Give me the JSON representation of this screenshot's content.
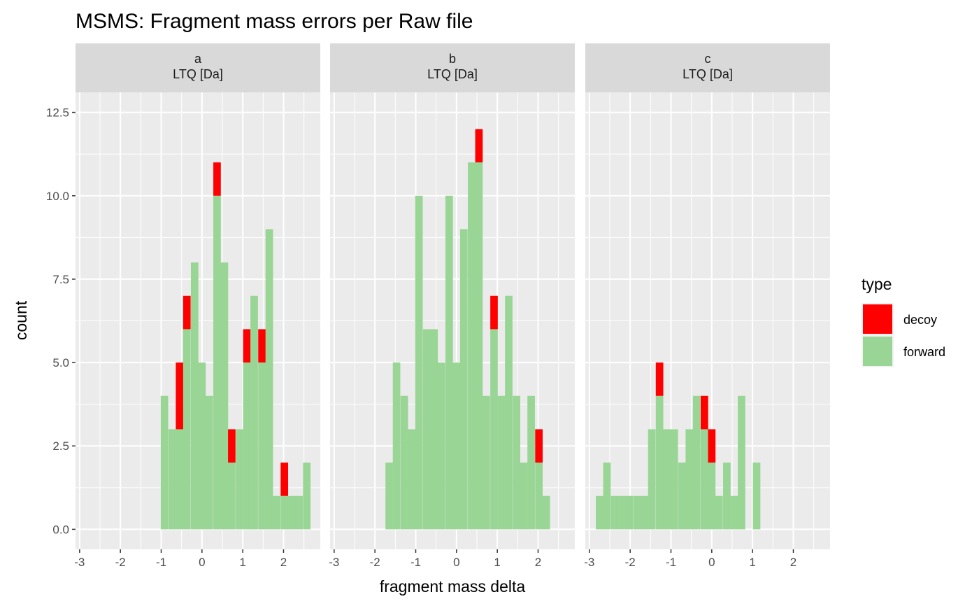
{
  "chart_data": {
    "type": "bar",
    "title": "MSMS: Fragment mass errors per Raw file",
    "xlabel": "fragment mass delta",
    "ylabel": "count",
    "xlim": [
      -3.1,
      2.9
    ],
    "ylim": [
      -0.6,
      13.1
    ],
    "xticks": [
      "-3",
      "-2",
      "-1",
      "0",
      "1",
      "2"
    ],
    "xtick_values": [
      -3,
      -2,
      -1,
      0,
      1,
      2
    ],
    "yticks": [
      "0.0",
      "2.5",
      "5.0",
      "7.5",
      "10.0",
      "12.5"
    ],
    "ytick_values": [
      0,
      2.5,
      5,
      7.5,
      10,
      12.5
    ],
    "stacked": true,
    "grid": true,
    "legend": {
      "title": "type",
      "position": "right",
      "items": [
        {
          "label": "decoy",
          "color": "#ff0000"
        },
        {
          "label": "forward",
          "color": "#99d594"
        }
      ]
    },
    "colors": {
      "decoy": "#ff0000",
      "forward": "#99d594",
      "panel_bg": "#ebebeb",
      "strip_bg": "#d9d9d9",
      "grid": "#ffffff"
    },
    "facets": [
      {
        "strip": [
          "a",
          "LTQ [Da]"
        ],
        "bins": [
          {
            "x": -0.92,
            "forward": 4,
            "decoy": 0
          },
          {
            "x": -0.73,
            "forward": 3,
            "decoy": 0
          },
          {
            "x": -0.55,
            "forward": 3,
            "decoy": 2
          },
          {
            "x": -0.37,
            "forward": 6,
            "decoy": 1
          },
          {
            "x": -0.18,
            "forward": 8,
            "decoy": 0
          },
          {
            "x": 0.0,
            "forward": 5,
            "decoy": 0
          },
          {
            "x": 0.18,
            "forward": 4,
            "decoy": 0
          },
          {
            "x": 0.37,
            "forward": 10,
            "decoy": 1
          },
          {
            "x": 0.55,
            "forward": 8,
            "decoy": 0
          },
          {
            "x": 0.73,
            "forward": 2,
            "decoy": 1
          },
          {
            "x": 0.92,
            "forward": 3,
            "decoy": 0
          },
          {
            "x": 1.1,
            "forward": 5,
            "decoy": 1
          },
          {
            "x": 1.28,
            "forward": 7,
            "decoy": 0
          },
          {
            "x": 1.47,
            "forward": 5,
            "decoy": 1
          },
          {
            "x": 1.65,
            "forward": 9,
            "decoy": 0
          },
          {
            "x": 1.83,
            "forward": 1,
            "decoy": 0
          },
          {
            "x": 2.02,
            "forward": 1,
            "decoy": 1
          },
          {
            "x": 2.2,
            "forward": 1,
            "decoy": 0
          },
          {
            "x": 2.38,
            "forward": 1,
            "decoy": 0
          },
          {
            "x": 2.57,
            "forward": 2,
            "decoy": 0
          }
        ]
      },
      {
        "strip": [
          "b",
          "LTQ [Da]"
        ],
        "bins": [
          {
            "x": -1.65,
            "forward": 2,
            "decoy": 0
          },
          {
            "x": -1.47,
            "forward": 5,
            "decoy": 0
          },
          {
            "x": -1.28,
            "forward": 4,
            "decoy": 0
          },
          {
            "x": -1.1,
            "forward": 3,
            "decoy": 0
          },
          {
            "x": -0.92,
            "forward": 10,
            "decoy": 0
          },
          {
            "x": -0.73,
            "forward": 6,
            "decoy": 0
          },
          {
            "x": -0.55,
            "forward": 6,
            "decoy": 0
          },
          {
            "x": -0.37,
            "forward": 5,
            "decoy": 0
          },
          {
            "x": -0.18,
            "forward": 10,
            "decoy": 0
          },
          {
            "x": 0.0,
            "forward": 5,
            "decoy": 0
          },
          {
            "x": 0.18,
            "forward": 9,
            "decoy": 0
          },
          {
            "x": 0.37,
            "forward": 11,
            "decoy": 0
          },
          {
            "x": 0.55,
            "forward": 11,
            "decoy": 1
          },
          {
            "x": 0.73,
            "forward": 4,
            "decoy": 0
          },
          {
            "x": 0.92,
            "forward": 6,
            "decoy": 1
          },
          {
            "x": 1.1,
            "forward": 4,
            "decoy": 0
          },
          {
            "x": 1.28,
            "forward": 7,
            "decoy": 0
          },
          {
            "x": 1.47,
            "forward": 4,
            "decoy": 0
          },
          {
            "x": 1.65,
            "forward": 2,
            "decoy": 0
          },
          {
            "x": 1.83,
            "forward": 4,
            "decoy": 0
          },
          {
            "x": 2.02,
            "forward": 2,
            "decoy": 1
          },
          {
            "x": 2.2,
            "forward": 1,
            "decoy": 0
          }
        ]
      },
      {
        "strip": [
          "c",
          "LTQ [Da]"
        ],
        "bins": [
          {
            "x": -2.75,
            "forward": 1,
            "decoy": 0
          },
          {
            "x": -2.57,
            "forward": 2,
            "decoy": 0
          },
          {
            "x": -2.38,
            "forward": 1,
            "decoy": 0
          },
          {
            "x": -2.2,
            "forward": 1,
            "decoy": 0
          },
          {
            "x": -2.02,
            "forward": 1,
            "decoy": 0
          },
          {
            "x": -1.83,
            "forward": 1,
            "decoy": 0
          },
          {
            "x": -1.65,
            "forward": 1,
            "decoy": 0
          },
          {
            "x": -1.47,
            "forward": 3,
            "decoy": 0
          },
          {
            "x": -1.28,
            "forward": 4,
            "decoy": 1
          },
          {
            "x": -1.1,
            "forward": 3,
            "decoy": 0
          },
          {
            "x": -0.92,
            "forward": 3,
            "decoy": 0
          },
          {
            "x": -0.73,
            "forward": 2,
            "decoy": 0
          },
          {
            "x": -0.55,
            "forward": 3,
            "decoy": 0
          },
          {
            "x": -0.37,
            "forward": 4,
            "decoy": 0
          },
          {
            "x": -0.18,
            "forward": 3,
            "decoy": 1
          },
          {
            "x": 0.0,
            "forward": 2,
            "decoy": 1
          },
          {
            "x": 0.18,
            "forward": 1,
            "decoy": 0
          },
          {
            "x": 0.37,
            "forward": 2,
            "decoy": 0
          },
          {
            "x": 0.55,
            "forward": 1,
            "decoy": 0
          },
          {
            "x": 0.73,
            "forward": 4,
            "decoy": 0
          },
          {
            "x": 1.1,
            "forward": 2,
            "decoy": 0
          }
        ]
      }
    ]
  }
}
